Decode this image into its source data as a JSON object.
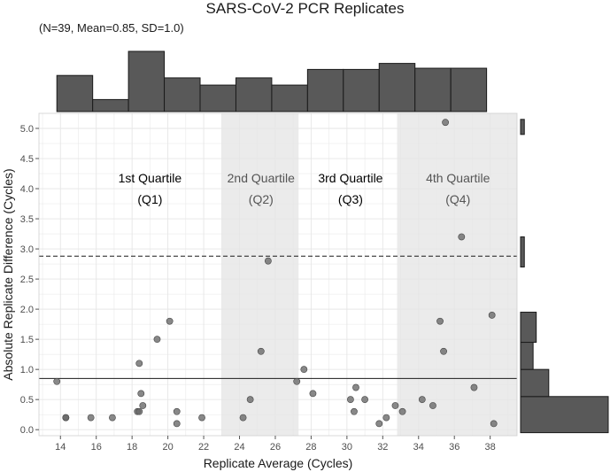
{
  "header": {
    "title": "SARS-CoV-2 PCR Replicates",
    "subtitle": "(N=39, Mean=0.85, SD=1.0)"
  },
  "chart_data": {
    "type": "scatter",
    "title": "SARS-CoV-2 PCR Replicates",
    "subtitle": "(N=39, Mean=0.85, SD=1.0)",
    "xlabel": "Replicate Average (Cycles)",
    "ylabel": "Absolute Replicate Difference (Cycles)",
    "xlim": [
      12.8,
      39.5
    ],
    "ylim": [
      -0.1,
      5.25
    ],
    "x_ticks": [
      14,
      16,
      18,
      20,
      22,
      24,
      26,
      28,
      30,
      32,
      34,
      36,
      38
    ],
    "y_ticks": [
      0.0,
      0.5,
      1.0,
      1.5,
      2.0,
      2.5,
      3.0,
      3.5,
      4.0,
      4.5,
      5.0
    ],
    "grid": true,
    "points": [
      [
        13.8,
        0.8
      ],
      [
        14.3,
        0.2
      ],
      [
        14.3,
        0.2
      ],
      [
        15.7,
        0.2
      ],
      [
        16.9,
        0.2
      ],
      [
        18.3,
        0.3
      ],
      [
        18.4,
        0.3
      ],
      [
        18.4,
        1.1
      ],
      [
        18.5,
        0.6
      ],
      [
        18.6,
        0.4
      ],
      [
        19.4,
        1.5
      ],
      [
        20.1,
        1.8
      ],
      [
        20.5,
        0.3
      ],
      [
        20.5,
        0.1
      ],
      [
        21.9,
        0.2
      ],
      [
        24.2,
        0.2
      ],
      [
        24.6,
        0.5
      ],
      [
        25.2,
        1.3
      ],
      [
        25.6,
        2.8
      ],
      [
        27.2,
        0.8
      ],
      [
        27.6,
        1.0
      ],
      [
        28.1,
        0.6
      ],
      [
        30.2,
        0.5
      ],
      [
        30.4,
        0.3
      ],
      [
        30.5,
        0.7
      ],
      [
        31.0,
        0.5
      ],
      [
        31.8,
        0.1
      ],
      [
        32.2,
        0.2
      ],
      [
        32.7,
        0.4
      ],
      [
        33.1,
        0.3
      ],
      [
        34.2,
        0.5
      ],
      [
        34.8,
        0.4
      ],
      [
        35.2,
        1.8
      ],
      [
        35.4,
        1.3
      ],
      [
        35.5,
        5.1
      ],
      [
        36.4,
        3.2
      ],
      [
        37.1,
        0.7
      ],
      [
        38.1,
        1.9
      ],
      [
        38.2,
        0.1
      ]
    ],
    "hlines": [
      {
        "y": 0.85,
        "style": "solid"
      },
      {
        "y": 2.88,
        "style": "dashed"
      }
    ],
    "shaded_x_ranges": [
      [
        23.0,
        27.3
      ],
      [
        32.8,
        39.5
      ]
    ],
    "quartile_labels": [
      {
        "line1": "1st Quartile",
        "line2": "(Q1)",
        "x": 19.0,
        "y": 4.1,
        "color": "#000000"
      },
      {
        "line1": "2nd Quartile",
        "line2": "(Q2)",
        "x": 25.2,
        "y": 4.1,
        "color": "#555555"
      },
      {
        "line1": "3rd Quartile",
        "line2": "(Q3)",
        "x": 30.2,
        "y": 4.1,
        "color": "#000000"
      },
      {
        "line1": "4th Quartile",
        "line2": "(Q4)",
        "x": 36.2,
        "y": 4.1,
        "color": "#555555"
      }
    ],
    "x_histogram": {
      "edges": [
        13.8,
        15.8,
        17.8,
        19.8,
        21.8,
        23.8,
        25.8,
        27.8,
        29.8,
        31.8,
        33.8,
        35.8,
        37.8
      ],
      "counts": [
        3,
        1,
        5,
        2.8,
        2.2,
        2.8,
        2.2,
        3.5,
        3.5,
        4,
        3.6,
        3.6
      ]
    },
    "y_histogram": {
      "bins": [
        {
          "from": -0.05,
          "to": 0.55,
          "count": 14
        },
        {
          "from": 0.55,
          "to": 1.0,
          "count": 4.5
        },
        {
          "from": 1.0,
          "to": 1.45,
          "count": 2
        },
        {
          "from": 1.45,
          "to": 1.95,
          "count": 2.5
        },
        {
          "from": 2.7,
          "to": 3.2,
          "count": 0.6
        },
        {
          "from": 4.9,
          "to": 5.15,
          "count": 0.6
        }
      ]
    },
    "colors": {
      "point": "#666666",
      "point_stroke": "#444444",
      "histogram_fill": "#595959",
      "shade": "#ebebeb",
      "grid": "#e6e6e6",
      "axis": "#555555"
    }
  }
}
